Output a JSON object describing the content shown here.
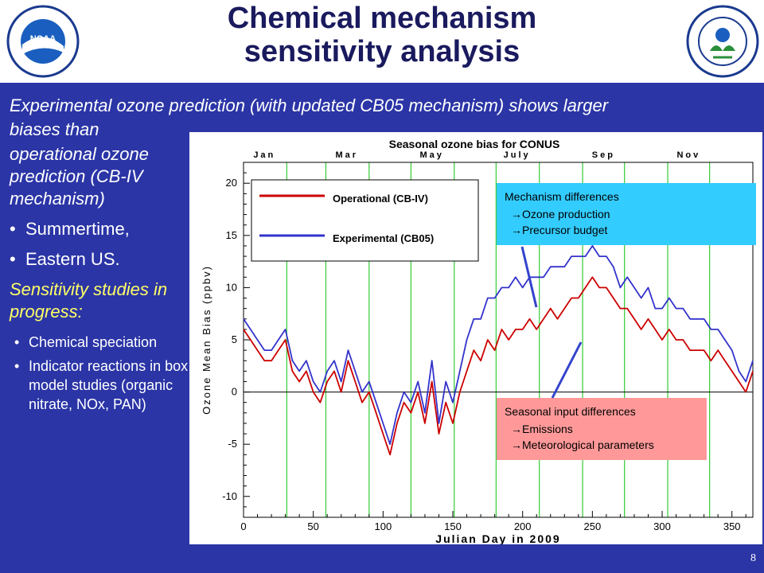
{
  "slide": {
    "title_line1": "Chemical mechanism",
    "title_line2": "sensitivity analysis",
    "intro_line1": "Experimental ozone prediction (with updated CB05 mechanism) shows larger",
    "intro_line2": "biases than",
    "intro_cont": "operational ozone prediction (CB-IV mechanism)",
    "bullets_1": [
      "Summertime,",
      "Eastern US."
    ],
    "sensitivity_heading": "Sensitivity studies in progress:",
    "bullets_2": [
      "Chemical speciation",
      "Indicator reactions in box model studies (organic nitrate, NOx, PAN)"
    ],
    "page_number": "8"
  },
  "colors": {
    "background": "#2b35a6",
    "intro_text": "#ffffff",
    "sensitivity_text": "#ffff66",
    "operational": "#cc0000",
    "experimental": "#3333cc",
    "mechanism_box": "#33ccff",
    "input_box": "#ff9999",
    "month_lines": "#33cc33"
  },
  "logos": {
    "left": "noaa-logo",
    "right": "epa-logo"
  },
  "chart_data": {
    "type": "line",
    "title": "Seasonal ozone bias for CONUS",
    "xlabel": "Julian Day in 2009",
    "ylabel": "Ozone Mean Bias (ppbv)",
    "xlim": [
      0,
      365
    ],
    "ylim": [
      -12,
      22
    ],
    "xticks": [
      0,
      50,
      100,
      150,
      200,
      250,
      300,
      350
    ],
    "yticks": [
      -10,
      -5,
      0,
      5,
      10,
      15,
      20
    ],
    "month_labels": [
      {
        "label": "Jan",
        "day": 15
      },
      {
        "label": "Mar",
        "day": 74
      },
      {
        "label": "May",
        "day": 135
      },
      {
        "label": "July",
        "day": 196
      },
      {
        "label": "Sep",
        "day": 258
      },
      {
        "label": "Nov",
        "day": 319
      }
    ],
    "month_boundaries": [
      31,
      59,
      90,
      120,
      151,
      181,
      212,
      243,
      273,
      304,
      334
    ],
    "series": [
      {
        "name": "Operational (CB-IV)",
        "color": "#cc0000",
        "x": [
          0,
          5,
          10,
          15,
          20,
          25,
          30,
          35,
          40,
          45,
          50,
          55,
          60,
          65,
          70,
          75,
          80,
          85,
          90,
          95,
          100,
          105,
          110,
          115,
          120,
          125,
          130,
          135,
          140,
          145,
          150,
          155,
          160,
          165,
          170,
          175,
          180,
          185,
          190,
          195,
          200,
          205,
          210,
          215,
          220,
          225,
          230,
          235,
          240,
          245,
          250,
          255,
          260,
          265,
          270,
          275,
          280,
          285,
          290,
          295,
          300,
          305,
          310,
          315,
          320,
          325,
          330,
          335,
          340,
          345,
          350,
          355,
          360,
          365
        ],
        "y": [
          6,
          5,
          4,
          3,
          3,
          4,
          5,
          2,
          1,
          2,
          0,
          -1,
          1,
          2,
          0,
          3,
          1,
          -1,
          0,
          -2,
          -4,
          -6,
          -3,
          -1,
          -2,
          0,
          -3,
          1,
          -4,
          -1,
          -3,
          0,
          2,
          4,
          3,
          5,
          4,
          6,
          5,
          6,
          6,
          7,
          6,
          7,
          8,
          7,
          8,
          9,
          9,
          10,
          11,
          10,
          10,
          9,
          8,
          8,
          7,
          6,
          7,
          6,
          5,
          6,
          5,
          5,
          4,
          4,
          4,
          3,
          4,
          3,
          2,
          1,
          0,
          2
        ]
      },
      {
        "name": "Experimental (CB05)",
        "color": "#3333cc",
        "x": [
          0,
          5,
          10,
          15,
          20,
          25,
          30,
          35,
          40,
          45,
          50,
          55,
          60,
          65,
          70,
          75,
          80,
          85,
          90,
          95,
          100,
          105,
          110,
          115,
          120,
          125,
          130,
          135,
          140,
          145,
          150,
          155,
          160,
          165,
          170,
          175,
          180,
          185,
          190,
          195,
          200,
          205,
          210,
          215,
          220,
          225,
          230,
          235,
          240,
          245,
          250,
          255,
          260,
          265,
          270,
          275,
          280,
          285,
          290,
          295,
          300,
          305,
          310,
          315,
          320,
          325,
          330,
          335,
          340,
          345,
          350,
          355,
          360,
          365
        ],
        "y": [
          7,
          6,
          5,
          4,
          4,
          5,
          6,
          3,
          2,
          3,
          1,
          0,
          2,
          3,
          1,
          4,
          2,
          0,
          1,
          -1,
          -3,
          -5,
          -2,
          0,
          -1,
          1,
          -2,
          3,
          -3,
          1,
          -1,
          2,
          5,
          7,
          7,
          9,
          9,
          10,
          10,
          11,
          10,
          11,
          11,
          11,
          12,
          12,
          12,
          13,
          13,
          13,
          14,
          13,
          13,
          12,
          10,
          11,
          10,
          9,
          10,
          8,
          8,
          9,
          8,
          8,
          7,
          7,
          7,
          6,
          6,
          5,
          4,
          2,
          1,
          3
        ]
      }
    ],
    "annotations": [
      {
        "title": "Mechanism differences",
        "items": [
          "Ozone production",
          "Precursor budget"
        ]
      },
      {
        "title": "Seasonal input differences",
        "items": [
          "Emissions",
          "Meteorological parameters"
        ]
      }
    ]
  }
}
